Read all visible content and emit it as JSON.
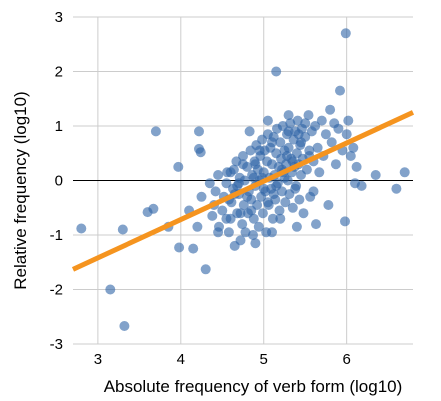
{
  "chart_data": {
    "type": "scatter",
    "title": "",
    "xlabel": "Absolute frequency of verb form (log10)",
    "ylabel": "Relative frequency (log10)",
    "xlim": [
      2.7,
      6.8
    ],
    "ylim": [
      -3,
      3
    ],
    "x_ticks": [
      3,
      4,
      5,
      6
    ],
    "y_ticks": [
      -3,
      -2,
      -1,
      0,
      1,
      2,
      3
    ],
    "x_tick_labels": [
      "3",
      "4",
      "5",
      "6"
    ],
    "y_tick_labels": [
      "-3",
      "-2",
      "-1",
      "0",
      "1",
      "2",
      "3"
    ],
    "grid": true,
    "zero_line": 0,
    "colors": {
      "points": "#2E64A6",
      "trend": "#F5941F",
      "grid": "#cccccc",
      "zero_line": "#000000"
    },
    "trend_line": {
      "x": [
        2.7,
        6.8
      ],
      "y": [
        -1.63,
        1.25
      ]
    },
    "series": [
      {
        "points": [
          [
            2.8,
            -0.88
          ],
          [
            3.15,
            -2.0
          ],
          [
            3.3,
            -0.9
          ],
          [
            3.32,
            -2.67
          ],
          [
            3.6,
            -0.58
          ],
          [
            3.67,
            -0.52
          ],
          [
            3.7,
            0.9
          ],
          [
            3.85,
            -0.85
          ],
          [
            3.97,
            0.25
          ],
          [
            3.98,
            -1.23
          ],
          [
            4.15,
            -1.25
          ],
          [
            4.22,
            0.9
          ],
          [
            4.22,
            0.58
          ],
          [
            4.24,
            0.52
          ],
          [
            4.3,
            -1.63
          ],
          [
            4.1,
            -0.55
          ],
          [
            4.2,
            -0.85
          ],
          [
            4.25,
            -0.3
          ],
          [
            4.35,
            -0.05
          ],
          [
            4.38,
            -0.65
          ],
          [
            4.4,
            -0.45
          ],
          [
            4.42,
            -0.2
          ],
          [
            4.45,
            0.1
          ],
          [
            4.46,
            -0.85
          ],
          [
            4.5,
            -0.55
          ],
          [
            4.52,
            -0.3
          ],
          [
            4.55,
            -0.05
          ],
          [
            4.56,
            0.15
          ],
          [
            4.58,
            -0.95
          ],
          [
            4.6,
            -0.7
          ],
          [
            4.61,
            -0.4
          ],
          [
            4.63,
            -0.15
          ],
          [
            4.64,
            0.2
          ],
          [
            4.65,
            -1.2
          ],
          [
            4.67,
            0.35
          ],
          [
            4.68,
            -0.6
          ],
          [
            4.7,
            -0.25
          ],
          [
            4.71,
            0.05
          ],
          [
            4.72,
            -1.1
          ],
          [
            4.74,
            -0.8
          ],
          [
            4.75,
            0.45
          ],
          [
            4.76,
            -0.45
          ],
          [
            4.77,
            0.0
          ],
          [
            4.78,
            -0.95
          ],
          [
            4.8,
            0.25
          ],
          [
            4.81,
            -0.6
          ],
          [
            4.82,
            -0.2
          ],
          [
            4.84,
            0.55
          ],
          [
            4.85,
            -0.35
          ],
          [
            4.86,
            0.1
          ],
          [
            4.87,
            -1.0
          ],
          [
            4.88,
            -0.7
          ],
          [
            4.89,
            0.35
          ],
          [
            4.9,
            -0.1
          ],
          [
            4.91,
            0.65
          ],
          [
            4.92,
            -0.45
          ],
          [
            4.93,
            0.2
          ],
          [
            4.94,
            -0.85
          ],
          [
            4.95,
            0.0
          ],
          [
            4.96,
            0.45
          ],
          [
            4.97,
            -0.3
          ],
          [
            4.98,
            0.75
          ],
          [
            4.99,
            -0.6
          ],
          [
            5.0,
            0.15
          ],
          [
            5.01,
            0.55
          ],
          [
            5.02,
            -0.2
          ],
          [
            5.03,
            -0.95
          ],
          [
            5.04,
            0.35
          ],
          [
            5.05,
            0.85
          ],
          [
            5.06,
            -0.45
          ],
          [
            5.07,
            0.05
          ],
          [
            5.08,
            0.6
          ],
          [
            5.09,
            -0.15
          ],
          [
            5.1,
            0.3
          ],
          [
            5.11,
            -0.7
          ],
          [
            5.12,
            0.8
          ],
          [
            5.13,
            0.1
          ],
          [
            5.14,
            -0.35
          ],
          [
            5.15,
            0.5
          ],
          [
            5.16,
            0.95
          ],
          [
            5.17,
            -0.05
          ],
          [
            5.18,
            0.25
          ],
          [
            5.19,
            -0.55
          ],
          [
            5.2,
            0.7
          ],
          [
            5.21,
            0.4
          ],
          [
            5.22,
            -0.2
          ],
          [
            5.23,
            1.0
          ],
          [
            5.24,
            0.15
          ],
          [
            5.25,
            0.55
          ],
          [
            5.26,
            -0.4
          ],
          [
            5.27,
            0.3
          ],
          [
            5.28,
            0.85
          ],
          [
            5.29,
            0.0
          ],
          [
            5.3,
            0.6
          ],
          [
            5.31,
            -0.25
          ],
          [
            5.32,
            1.05
          ],
          [
            5.33,
            0.4
          ],
          [
            5.34,
            0.15
          ],
          [
            5.35,
            -0.5
          ],
          [
            5.36,
            0.75
          ],
          [
            5.37,
            0.25
          ],
          [
            5.38,
            0.9
          ],
          [
            5.39,
            -0.1
          ],
          [
            5.4,
            0.5
          ],
          [
            5.41,
            1.1
          ],
          [
            5.42,
            0.3
          ],
          [
            5.43,
            -0.35
          ],
          [
            5.44,
            0.65
          ],
          [
            5.45,
            0.1
          ],
          [
            5.46,
            0.95
          ],
          [
            5.47,
            0.4
          ],
          [
            5.48,
            -0.6
          ],
          [
            5.5,
            0.8
          ],
          [
            5.52,
            0.2
          ],
          [
            5.54,
            1.2
          ],
          [
            5.55,
            0.55
          ],
          [
            5.56,
            -0.3
          ],
          [
            5.58,
            0.9
          ],
          [
            5.6,
            0.35
          ],
          [
            5.62,
            1.0
          ],
          [
            5.63,
            -0.8
          ],
          [
            5.65,
            0.6
          ],
          [
            5.67,
            0.15
          ],
          [
            5.7,
            1.1
          ],
          [
            5.72,
            0.45
          ],
          [
            5.75,
            0.85
          ],
          [
            5.78,
            -0.45
          ],
          [
            5.8,
            1.3
          ],
          [
            5.82,
            0.7
          ],
          [
            5.85,
            1.05
          ],
          [
            5.87,
            0.3
          ],
          [
            5.9,
            0.95
          ],
          [
            5.92,
            1.65
          ],
          [
            5.95,
            0.55
          ],
          [
            5.98,
            -0.75
          ],
          [
            6.0,
            0.85
          ],
          [
            6.02,
            1.1
          ],
          [
            6.05,
            0.45
          ],
          [
            6.08,
            0.6
          ],
          [
            6.1,
            -0.05
          ],
          [
            6.12,
            0.25
          ],
          [
            6.18,
            -0.1
          ],
          [
            6.35,
            0.1
          ],
          [
            6.6,
            -0.15
          ],
          [
            6.7,
            0.15
          ],
          [
            5.15,
            2.0
          ],
          [
            5.99,
            2.7
          ],
          [
            5.4,
            -0.85
          ],
          [
            5.1,
            -0.95
          ],
          [
            4.9,
            -1.15
          ],
          [
            4.55,
            -0.7
          ],
          [
            4.45,
            -0.95
          ],
          [
            4.6,
            0.15
          ],
          [
            5.05,
            1.1
          ],
          [
            5.3,
            1.2
          ],
          [
            5.5,
            1.05
          ],
          [
            4.83,
            0.9
          ],
          [
            5.2,
            -0.7
          ],
          [
            5.6,
            -0.2
          ],
          [
            4.7,
            -0.05
          ],
          [
            4.8,
            -0.3
          ],
          [
            5.0,
            -0.15
          ],
          [
            5.25,
            0.05
          ],
          [
            4.95,
            0.55
          ],
          [
            5.35,
            0.35
          ],
          [
            4.65,
            -0.25
          ],
          [
            5.45,
            0.7
          ],
          [
            4.75,
            0.3
          ],
          [
            5.15,
            -0.1
          ],
          [
            5.55,
            0.45
          ],
          [
            4.85,
            -0.55
          ],
          [
            5.05,
            -0.4
          ],
          [
            4.9,
            0.3
          ],
          [
            5.3,
            0.9
          ],
          [
            5.1,
            0.7
          ],
          [
            4.58,
            -0.35
          ],
          [
            5.22,
            0.2
          ],
          [
            4.72,
            -0.6
          ],
          [
            5.38,
            -0.15
          ],
          [
            4.98,
            0.05
          ],
          [
            5.12,
            -0.25
          ],
          [
            5.28,
            0.45
          ],
          [
            4.88,
            0.05
          ],
          [
            5.42,
            0.85
          ],
          [
            4.68,
            -0.1
          ]
        ]
      }
    ]
  }
}
